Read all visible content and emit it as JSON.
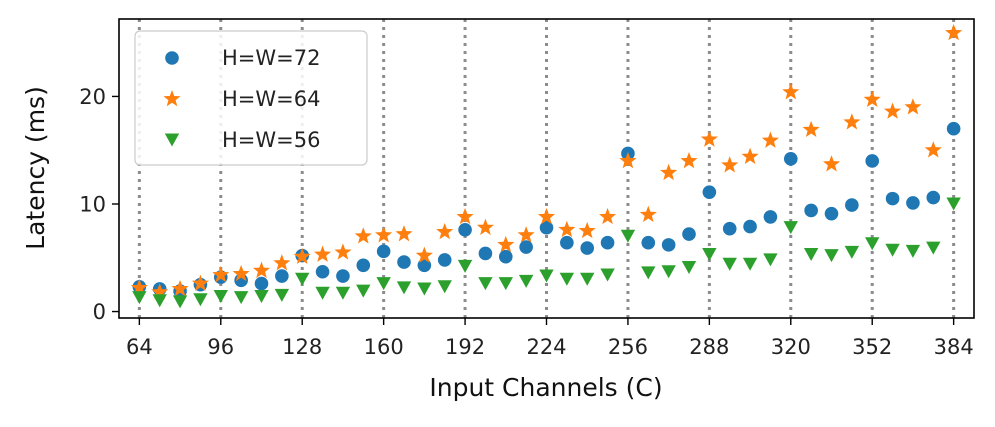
{
  "chart_data": {
    "type": "scatter",
    "title": "",
    "xlabel": "Input Channels (C)",
    "ylabel": "Latency (ms)",
    "xlim": [
      56,
      392
    ],
    "ylim": [
      -0.6,
      27.2
    ],
    "xticks": [
      64,
      96,
      128,
      160,
      192,
      224,
      256,
      288,
      320,
      352,
      384
    ],
    "yticks": [
      0,
      10,
      20
    ],
    "vertical_gridlines": [
      64,
      96,
      128,
      160,
      192,
      224,
      256,
      288,
      320,
      352,
      384
    ],
    "legend_position": "top-left",
    "x": [
      64,
      72,
      80,
      88,
      96,
      104,
      112,
      120,
      128,
      136,
      144,
      152,
      160,
      168,
      176,
      184,
      192,
      200,
      208,
      216,
      224,
      232,
      240,
      248,
      256,
      264,
      272,
      280,
      288,
      296,
      304,
      312,
      320,
      328,
      336,
      344,
      352,
      360,
      368,
      376,
      384
    ],
    "series": [
      {
        "name": "H=W=72",
        "marker": "circle",
        "color": "#1f77b4",
        "values": [
          2.3,
          2.1,
          1.9,
          2.5,
          3.2,
          2.9,
          2.6,
          3.3,
          5.2,
          3.7,
          3.3,
          4.3,
          5.6,
          4.6,
          4.3,
          4.8,
          7.6,
          5.4,
          5.1,
          6.0,
          7.8,
          6.4,
          5.9,
          6.4,
          14.7,
          6.4,
          6.2,
          7.2,
          11.1,
          7.7,
          7.9,
          8.8,
          14.2,
          9.4,
          9.1,
          9.9,
          14.0,
          10.5,
          10.1,
          10.6,
          17.0
        ]
      },
      {
        "name": "H=W=64",
        "marker": "star",
        "color": "#ff7f0e",
        "values": [
          2.2,
          1.8,
          2.1,
          2.6,
          3.4,
          3.5,
          3.8,
          4.5,
          5.1,
          5.3,
          5.5,
          7.0,
          7.1,
          7.2,
          5.2,
          7.4,
          8.8,
          7.8,
          6.2,
          7.1,
          8.8,
          7.6,
          7.5,
          8.8,
          14.0,
          9.0,
          12.9,
          14.0,
          16.0,
          13.6,
          14.4,
          15.9,
          20.4,
          16.9,
          13.7,
          17.6,
          19.7,
          18.6,
          19.0,
          15.0,
          25.9
        ]
      },
      {
        "name": "H=W=56",
        "marker": "triangle-down",
        "color": "#2ca02c",
        "values": [
          1.3,
          1.0,
          0.9,
          1.1,
          1.4,
          1.3,
          1.4,
          1.5,
          3.0,
          1.7,
          1.7,
          1.9,
          2.6,
          2.2,
          2.1,
          2.3,
          4.2,
          2.6,
          2.6,
          2.8,
          3.3,
          3.0,
          3.0,
          3.4,
          7.0,
          3.6,
          3.7,
          4.1,
          5.3,
          4.4,
          4.4,
          4.8,
          7.8,
          5.3,
          5.2,
          5.5,
          6.3,
          5.7,
          5.6,
          5.9,
          10.0
        ]
      }
    ]
  }
}
